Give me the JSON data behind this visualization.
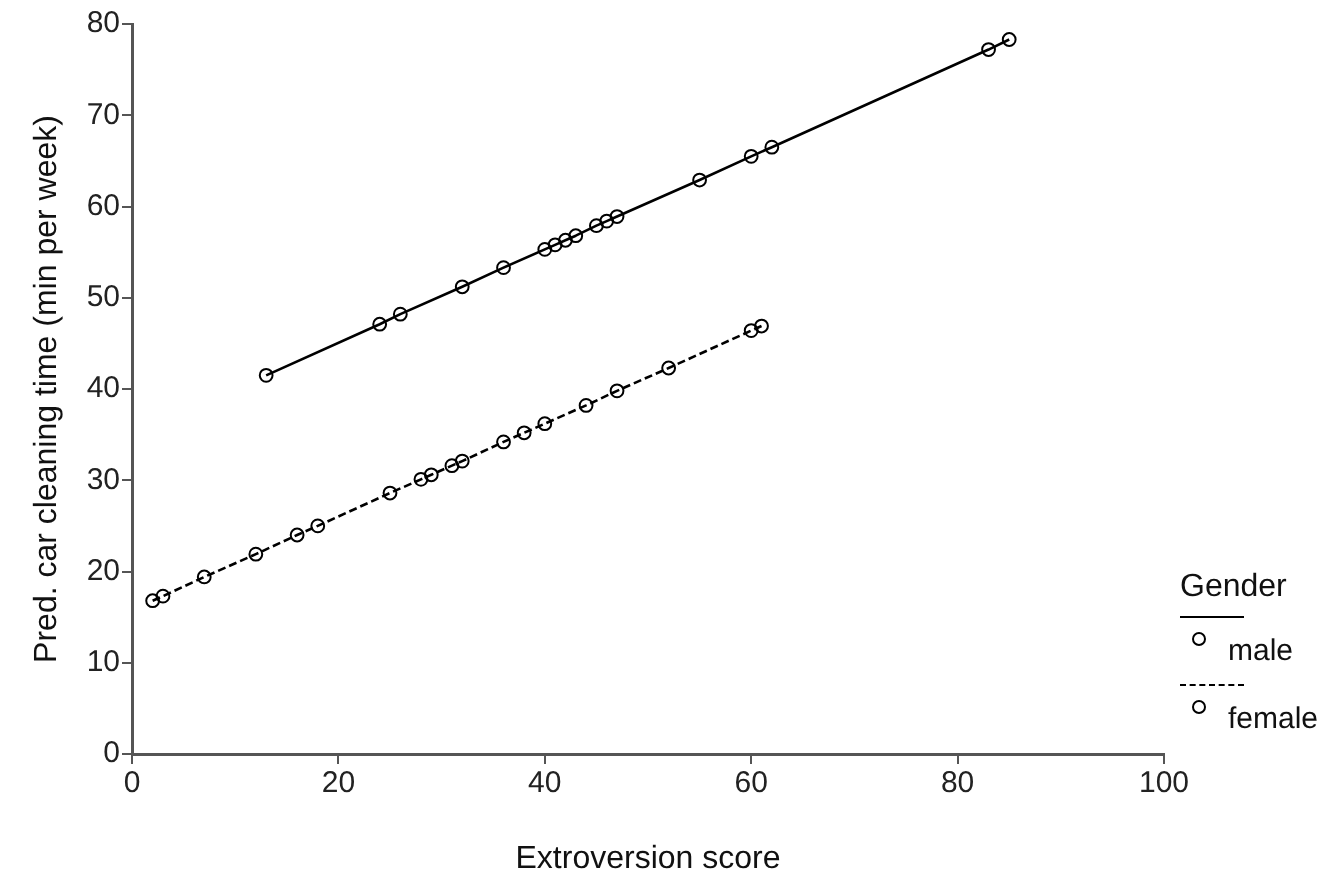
{
  "chart_data": {
    "type": "line",
    "xlabel": "Extroversion score",
    "ylabel": "Pred. car cleaning time (min per week)",
    "legend_title": "Gender",
    "legend": "right",
    "marker": "circle",
    "grid": false,
    "xlim": [
      0,
      100
    ],
    "xticks": [
      0,
      20,
      40,
      60,
      80,
      100
    ],
    "ylim": [
      0,
      80
    ],
    "yticks": [
      0,
      10,
      20,
      30,
      40,
      50,
      60,
      70,
      80
    ],
    "series": [
      {
        "name": "male",
        "color": "#000000",
        "line_style": "solid",
        "x": [
          13,
          24,
          26,
          32,
          36,
          40,
          41,
          42,
          43,
          45,
          46,
          47,
          55,
          60,
          62,
          83,
          85
        ],
        "values": [
          41.5,
          47.1,
          48.2,
          51.2,
          53.3,
          55.3,
          55.8,
          56.3,
          56.8,
          57.9,
          58.4,
          58.9,
          62.9,
          65.5,
          66.5,
          77.2,
          78.3
        ]
      },
      {
        "name": "female",
        "color": "#000000",
        "line_style": "dashed",
        "x": [
          2,
          3,
          7,
          12,
          16,
          18,
          25,
          28,
          29,
          31,
          32,
          36,
          38,
          40,
          44,
          47,
          52,
          60,
          61
        ],
        "values": [
          16.8,
          17.3,
          19.4,
          21.9,
          24.0,
          25.0,
          28.6,
          30.1,
          30.6,
          31.6,
          32.1,
          34.2,
          35.2,
          36.2,
          38.2,
          39.8,
          42.3,
          46.4,
          46.9
        ]
      }
    ]
  }
}
